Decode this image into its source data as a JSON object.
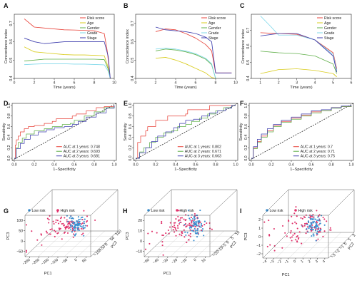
{
  "chart_data": [
    {
      "panel": "A",
      "type": "line",
      "xlabel": "Time (years)",
      "ylabel": "Concordance index",
      "xlim": [
        0,
        10
      ],
      "ylim": [
        0.4,
        0.75
      ],
      "xticks": [
        0,
        2,
        4,
        6,
        8,
        10
      ],
      "yticks": [
        0.4,
        0.5,
        0.6,
        0.7
      ],
      "legend": "top-right",
      "series": [
        {
          "name": "Risk score",
          "color": "#e8453c",
          "x": [
            1,
            2,
            3,
            4,
            5,
            6,
            7,
            8,
            9,
            9.3,
            9.6
          ],
          "y": [
            0.725,
            0.68,
            0.675,
            0.67,
            0.665,
            0.664,
            0.662,
            0.66,
            0.645,
            0.55,
            0.4
          ]
        },
        {
          "name": "Age",
          "color": "#d9cc1e",
          "x": [
            1,
            2,
            3,
            4,
            5,
            6,
            7,
            8,
            9,
            9.4,
            9.6
          ],
          "y": [
            0.572,
            0.545,
            0.54,
            0.535,
            0.53,
            0.528,
            0.528,
            0.526,
            0.524,
            0.46,
            0.4
          ]
        },
        {
          "name": "Gender",
          "color": "#61b04b",
          "x": [
            1,
            2,
            3,
            4,
            5,
            6,
            7,
            8,
            9,
            9.4,
            9.6
          ],
          "y": [
            0.495,
            0.5,
            0.505,
            0.505,
            0.505,
            0.505,
            0.505,
            0.505,
            0.503,
            0.45,
            0.4
          ]
        },
        {
          "name": "Grade",
          "color": "#7fd8ea",
          "x": [
            1,
            2,
            3,
            4,
            5,
            6,
            7,
            8,
            9,
            9.4,
            9.6
          ],
          "y": [
            0.475,
            0.478,
            0.48,
            0.48,
            0.48,
            0.478,
            0.478,
            0.476,
            0.474,
            0.44,
            0.4
          ]
        },
        {
          "name": "Stage",
          "color": "#3f3fae",
          "x": [
            1,
            2,
            3,
            4,
            5,
            6,
            7,
            8,
            9,
            9.4,
            9.6
          ],
          "y": [
            0.62,
            0.6,
            0.59,
            0.595,
            0.6,
            0.6,
            0.6,
            0.6,
            0.6,
            0.52,
            0.4
          ]
        }
      ]
    },
    {
      "panel": "B",
      "type": "line",
      "xlabel": "Time (years)",
      "ylabel": "Concordance index",
      "xlim": [
        0,
        10
      ],
      "ylim": [
        0.4,
        0.75
      ],
      "xticks": [
        0,
        2,
        4,
        6,
        8,
        10
      ],
      "yticks": [
        0.4,
        0.5,
        0.6,
        0.7
      ],
      "legend": "top-right",
      "series": [
        {
          "name": "Risk score",
          "color": "#e8453c",
          "x": [
            2,
            3,
            4,
            5,
            6,
            7,
            7.6,
            8,
            9.6
          ],
          "y": [
            0.655,
            0.67,
            0.665,
            0.645,
            0.62,
            0.585,
            0.55,
            0.43,
            0.43
          ]
        },
        {
          "name": "Age",
          "color": "#d9cc1e",
          "x": [
            2,
            3,
            4,
            5,
            6,
            7,
            7.6,
            8
          ],
          "y": [
            0.51,
            0.515,
            0.5,
            0.48,
            0.455,
            0.43,
            0.405,
            0.4
          ]
        },
        {
          "name": "Gender",
          "color": "#61b04b",
          "x": [
            2,
            3,
            4,
            5,
            6,
            7,
            7.6,
            8
          ],
          "y": [
            0.55,
            0.56,
            0.555,
            0.545,
            0.53,
            0.505,
            0.475,
            0.4
          ]
        },
        {
          "name": "Grade",
          "color": "#7fd8ea",
          "x": [
            2,
            3,
            4,
            5,
            6,
            7,
            7.6,
            8
          ],
          "y": [
            0.56,
            0.565,
            0.56,
            0.55,
            0.535,
            0.51,
            0.48,
            0.4
          ]
        },
        {
          "name": "Stage",
          "color": "#3f3fae",
          "x": [
            2,
            3,
            4,
            5,
            6,
            7,
            7.6,
            8,
            9.6
          ],
          "y": [
            0.68,
            0.665,
            0.66,
            0.655,
            0.645,
            0.625,
            0.6,
            0.43,
            0.43
          ]
        }
      ]
    },
    {
      "panel": "C",
      "type": "line",
      "xlabel": "Time (years)",
      "ylabel": "Concordance index",
      "xlim": [
        0.5,
        6
      ],
      "ylim": [
        0.4,
        0.8
      ],
      "xticks": [
        1,
        2,
        3,
        4,
        5,
        6
      ],
      "yticks": [
        0.4,
        0.5,
        0.6,
        0.7
      ],
      "legend": "top-right",
      "series": [
        {
          "name": "Risk score",
          "color": "#e8453c",
          "x": [
            1,
            2,
            3,
            4,
            5,
            5.2
          ],
          "y": [
            0.685,
            0.68,
            0.675,
            0.64,
            0.56,
            0.46
          ]
        },
        {
          "name": "Age",
          "color": "#d9cc1e",
          "x": [
            1,
            2,
            3,
            4,
            5,
            5.2
          ],
          "y": [
            0.43,
            0.455,
            0.46,
            0.45,
            0.43,
            0.41
          ]
        },
        {
          "name": "Gender",
          "color": "#61b04b",
          "x": [
            1,
            2,
            3,
            4,
            5,
            5.2
          ],
          "y": [
            0.57,
            0.56,
            0.555,
            0.54,
            0.49,
            0.43
          ]
        },
        {
          "name": "Grade",
          "color": "#7fd8ea",
          "x": [
            1,
            1.6,
            2,
            3,
            4,
            5,
            5.2
          ],
          "y": [
            0.79,
            0.72,
            0.67,
            0.67,
            0.64,
            0.55,
            0.45
          ]
        },
        {
          "name": "Stage",
          "color": "#3f3fae",
          "x": [
            1,
            2,
            3,
            4,
            5,
            5.2
          ],
          "y": [
            0.665,
            0.68,
            0.68,
            0.64,
            0.54,
            0.44
          ]
        }
      ]
    },
    {
      "panel": "D",
      "type": "line",
      "xlabel": "1−Specificity",
      "ylabel": "Sensitivity",
      "xlim": [
        0,
        1
      ],
      "ylim": [
        0,
        1
      ],
      "xticks": [
        0.0,
        0.2,
        0.4,
        0.6,
        0.8,
        1.0
      ],
      "yticks": [
        0.0,
        0.2,
        0.4,
        0.6,
        0.8,
        1.0
      ],
      "legend": "bottom-right",
      "series": [
        {
          "name": "AUC at 1 years: 0.748",
          "color": "#e8453c",
          "x": [
            0,
            0.01,
            0.02,
            0.04,
            0.06,
            0.1,
            0.14,
            0.2,
            0.26,
            0.3,
            0.38,
            0.42,
            0.5,
            0.58,
            0.62,
            0.72,
            0.82,
            0.9,
            1
          ],
          "y": [
            0,
            0.25,
            0.35,
            0.42,
            0.5,
            0.56,
            0.6,
            0.62,
            0.62,
            0.66,
            0.7,
            0.75,
            0.75,
            0.8,
            0.84,
            0.9,
            0.96,
            0.98,
            1
          ]
        },
        {
          "name": "AUC at 2 years: 0.693",
          "color": "#61b04b",
          "x": [
            0,
            0.02,
            0.04,
            0.08,
            0.12,
            0.2,
            0.3,
            0.38,
            0.48,
            0.56,
            0.6,
            0.7,
            0.8,
            0.9,
            1
          ],
          "y": [
            0,
            0.2,
            0.3,
            0.38,
            0.46,
            0.52,
            0.56,
            0.6,
            0.64,
            0.66,
            0.72,
            0.8,
            0.88,
            0.96,
            1
          ]
        },
        {
          "name": "AUC at 3 years: 0.681",
          "color": "#3f3fae",
          "x": [
            0,
            0.02,
            0.06,
            0.1,
            0.16,
            0.24,
            0.32,
            0.4,
            0.5,
            0.58,
            0.64,
            0.72,
            0.82,
            0.92,
            1
          ],
          "y": [
            0,
            0.18,
            0.28,
            0.36,
            0.44,
            0.5,
            0.54,
            0.58,
            0.6,
            0.64,
            0.7,
            0.78,
            0.86,
            0.95,
            1
          ]
        }
      ]
    },
    {
      "panel": "E",
      "type": "line",
      "xlabel": "1−Specificity",
      "ylabel": "Sensitivity",
      "xlim": [
        0,
        1
      ],
      "ylim": [
        0,
        1
      ],
      "xticks": [
        0.0,
        0.2,
        0.4,
        0.6,
        0.8,
        1.0
      ],
      "yticks": [
        0.0,
        0.2,
        0.4,
        0.6,
        0.8,
        1.0
      ],
      "legend": "bottom-right",
      "series": [
        {
          "name": "AUC at 1 years: 0.802",
          "color": "#e8453c",
          "x": [
            0,
            0.02,
            0.05,
            0.1,
            0.12,
            0.2,
            0.3,
            0.32,
            0.4,
            0.5,
            0.52,
            0.72,
            0.74,
            1
          ],
          "y": [
            0,
            0.3,
            0.42,
            0.52,
            0.6,
            0.72,
            0.72,
            0.8,
            0.8,
            0.84,
            0.92,
            0.92,
            1,
            1
          ]
        },
        {
          "name": "AUC at 2 years: 0.671",
          "color": "#61b04b",
          "x": [
            0,
            0.04,
            0.08,
            0.14,
            0.2,
            0.28,
            0.36,
            0.42,
            0.5,
            0.56,
            0.64,
            0.72,
            0.8,
            0.88,
            0.96,
            1
          ],
          "y": [
            0,
            0.12,
            0.2,
            0.3,
            0.4,
            0.48,
            0.52,
            0.6,
            0.64,
            0.7,
            0.76,
            0.84,
            0.9,
            0.96,
            1,
            1
          ]
        },
        {
          "name": "AUC at 3 years: 0.663",
          "color": "#3f3fae",
          "x": [
            0,
            0.04,
            0.1,
            0.16,
            0.22,
            0.3,
            0.38,
            0.44,
            0.5,
            0.58,
            0.66,
            0.74,
            0.82,
            0.9,
            0.96,
            1
          ],
          "y": [
            0,
            0.1,
            0.2,
            0.32,
            0.42,
            0.5,
            0.58,
            0.66,
            0.72,
            0.74,
            0.8,
            0.86,
            0.9,
            0.95,
            1,
            1
          ]
        }
      ]
    },
    {
      "panel": "F",
      "type": "line",
      "xlabel": "1−Specificity",
      "ylabel": "Sensitivity",
      "xlim": [
        0,
        1
      ],
      "ylim": [
        0,
        1
      ],
      "xticks": [
        0.0,
        0.2,
        0.4,
        0.6,
        0.8,
        1.0
      ],
      "yticks": [
        0.0,
        0.2,
        0.4,
        0.6,
        0.8,
        1.0
      ],
      "legend": "bottom-right",
      "series": [
        {
          "name": "AUC at 1 years: 0.7",
          "color": "#e8453c",
          "x": [
            0,
            0.02,
            0.06,
            0.1,
            0.16,
            0.22,
            0.3,
            0.4,
            0.5,
            0.6,
            0.7,
            0.8,
            0.9,
            1
          ],
          "y": [
            0,
            0.2,
            0.32,
            0.42,
            0.52,
            0.62,
            0.7,
            0.76,
            0.82,
            0.88,
            0.9,
            0.96,
            0.98,
            1
          ]
        },
        {
          "name": "AUC at 2 years: 0.71",
          "color": "#61b04b",
          "x": [
            0,
            0.02,
            0.06,
            0.1,
            0.16,
            0.22,
            0.3,
            0.4,
            0.5,
            0.6,
            0.7,
            0.8,
            0.9,
            1
          ],
          "y": [
            0,
            0.18,
            0.3,
            0.4,
            0.5,
            0.6,
            0.68,
            0.74,
            0.8,
            0.86,
            0.9,
            0.95,
            0.98,
            1
          ]
        },
        {
          "name": "AUC at 3 years: 0.75",
          "color": "#3f3fae",
          "x": [
            0,
            0.02,
            0.06,
            0.1,
            0.16,
            0.22,
            0.3,
            0.4,
            0.5,
            0.6,
            0.7,
            0.8,
            0.9,
            1
          ],
          "y": [
            0,
            0.22,
            0.36,
            0.46,
            0.56,
            0.64,
            0.72,
            0.78,
            0.84,
            0.9,
            0.92,
            0.96,
            0.99,
            1
          ]
        }
      ]
    },
    {
      "panel": "G",
      "type": "scatter",
      "xlabel": "PC1",
      "ylabel": "PC3",
      "zlabel": "PC2",
      "legend": "top",
      "series": [
        {
          "name": "Low risk",
          "color": "#3b8fd0"
        },
        {
          "name": "High risk",
          "color": "#e0346c"
        }
      ],
      "ticks": {
        "vertical": [
          "100",
          "50",
          "0",
          "−50"
        ],
        "front": [
          "−250",
          "−200",
          "−150",
          "−100",
          "−50",
          "0",
          "50"
        ],
        "depth": [
          "−150",
          "−50",
          "0",
          "50",
          "100"
        ]
      }
    },
    {
      "panel": "H",
      "type": "scatter",
      "xlabel": "PC1",
      "ylabel": "PC3",
      "zlabel": "PC2",
      "legend": "top",
      "series": [
        {
          "name": "Low risk",
          "color": "#3b8fd0"
        },
        {
          "name": "High risk",
          "color": "#e0346c"
        }
      ],
      "ticks": {
        "vertical": [
          "20",
          "10",
          "0",
          "−10"
        ],
        "front": [
          "−50",
          "−40",
          "−30",
          "−20",
          "−10",
          "0",
          "10"
        ],
        "depth": [
          "−25",
          "−15",
          "−5",
          "0",
          "5",
          "10"
        ]
      }
    },
    {
      "panel": "I",
      "type": "scatter",
      "xlabel": "PC1",
      "ylabel": "PC3",
      "zlabel": "PC2",
      "legend": "top",
      "series": [
        {
          "name": "Low risk",
          "color": "#3b8fd0"
        },
        {
          "name": "High risk",
          "color": "#e0346c"
        }
      ],
      "ticks": {
        "vertical": [
          "2",
          "1",
          "0",
          "−1",
          "−2"
        ],
        "front": [
          "−4",
          "−3",
          "−2",
          "−1",
          "0",
          "1",
          "2",
          "3",
          "4"
        ],
        "depth": [
          "−3",
          "−2",
          "−1",
          "0",
          "1",
          "2"
        ]
      }
    }
  ]
}
